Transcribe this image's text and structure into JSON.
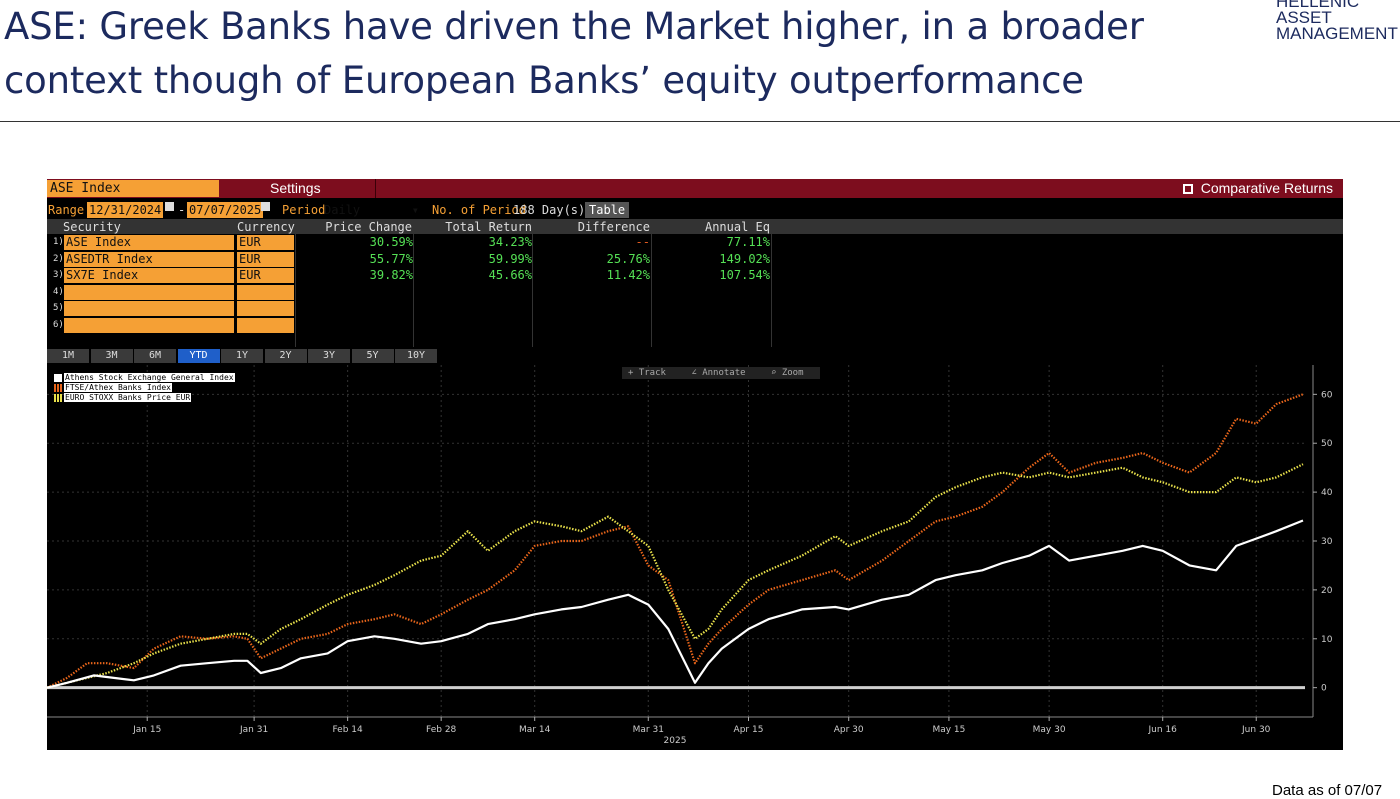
{
  "slide": {
    "title_line1": "ASE: Greek Banks have driven the Market higher, in a broader",
    "title_line2": "context though of European Banks’ equity outperformance",
    "logo_line1": "HELLENIC",
    "logo_line2": "ASSET",
    "logo_line3": "MANAGEMENT",
    "footer": "Data as of 07/07"
  },
  "terminal": {
    "ticker": "ASE Index",
    "settings_label": "Settings",
    "comparative_label": "Comparative Returns",
    "range_label": "Range",
    "range_start": "12/31/2024",
    "range_end": "07/07/2025",
    "range_dash": "-",
    "period_label": "Period",
    "period_value": "Daily",
    "nperiod_label": "No. of Period",
    "nperiod_value": "188 Day(s)",
    "table_button": "Table",
    "columns": [
      "Security",
      "Currency",
      "Price Change",
      "Total Return",
      "Difference",
      "Annual Eq"
    ],
    "rows": [
      {
        "num": "1)",
        "security": "ASE Index",
        "currency": "EUR",
        "price_change": "30.59%",
        "total_return": "34.23%",
        "difference": "--",
        "annual_eq": "77.11%"
      },
      {
        "num": "2)",
        "security": "ASEDTR Index",
        "currency": "EUR",
        "price_change": "55.77%",
        "total_return": "59.99%",
        "difference": "25.76%",
        "annual_eq": "149.02%"
      },
      {
        "num": "3)",
        "security": "SX7E Index",
        "currency": "EUR",
        "price_change": "39.82%",
        "total_return": "45.66%",
        "difference": "11.42%",
        "annual_eq": "107.54%"
      },
      {
        "num": "4)",
        "security": "",
        "currency": "",
        "price_change": "",
        "total_return": "",
        "difference": "",
        "annual_eq": ""
      },
      {
        "num": "5)",
        "security": "",
        "currency": "",
        "price_change": "",
        "total_return": "",
        "difference": "",
        "annual_eq": ""
      },
      {
        "num": "6)",
        "security": "",
        "currency": "",
        "price_change": "",
        "total_return": "",
        "difference": "",
        "annual_eq": ""
      }
    ],
    "period_buttons": [
      "1M",
      "3M",
      "6M",
      "YTD",
      "1Y",
      "2Y",
      "3Y",
      "5Y",
      "10Y"
    ],
    "active_period": "YTD",
    "tools": [
      "Track",
      "Annotate",
      "Zoom"
    ]
  },
  "colors": {
    "title": "#1c2a5e",
    "terminal_bg": "#000000",
    "topbar": "#7d0d1e",
    "orange": "#f5a035",
    "positive": "#55e055",
    "active_button": "#1f5fc9",
    "series_ase": "#ffffff",
    "series_banks": "#e8651a",
    "series_stoxx": "#e8e04a"
  },
  "chart_data": {
    "type": "line",
    "x_tick_labels": [
      "Jan 15",
      "Jan 31",
      "Feb 14",
      "Feb 28",
      "Mar 14",
      "Mar 31",
      "Apr 15",
      "Apr 30",
      "May 15",
      "May 30",
      "Jun 16",
      "Jun 30"
    ],
    "x_year_label": "2025",
    "y_ticks": [
      0,
      10,
      20,
      30,
      40,
      50,
      60
    ],
    "ylim": [
      -6,
      66
    ],
    "x_range": [
      "2024-12-31",
      "2025-07-07"
    ],
    "grid": true,
    "legend_position": "top-left",
    "series": [
      {
        "name": "Athens Stock Exchange General Index",
        "color": "#ffffff",
        "style": "solid",
        "points": [
          [
            "2024-12-31",
            0
          ],
          [
            "2025-01-03",
            1
          ],
          [
            "2025-01-07",
            2.5
          ],
          [
            "2025-01-10",
            2
          ],
          [
            "2025-01-13",
            1.5
          ],
          [
            "2025-01-16",
            2.5
          ],
          [
            "2025-01-20",
            4.5
          ],
          [
            "2025-01-24",
            5
          ],
          [
            "2025-01-28",
            5.5
          ],
          [
            "2025-01-30",
            5.5
          ],
          [
            "2025-02-01",
            3
          ],
          [
            "2025-02-04",
            4
          ],
          [
            "2025-02-07",
            6
          ],
          [
            "2025-02-11",
            7
          ],
          [
            "2025-02-14",
            9.5
          ],
          [
            "2025-02-18",
            10.5
          ],
          [
            "2025-02-21",
            10
          ],
          [
            "2025-02-25",
            9
          ],
          [
            "2025-02-28",
            9.5
          ],
          [
            "2025-03-04",
            11
          ],
          [
            "2025-03-07",
            13
          ],
          [
            "2025-03-11",
            14
          ],
          [
            "2025-03-14",
            15
          ],
          [
            "2025-03-18",
            16
          ],
          [
            "2025-03-21",
            16.5
          ],
          [
            "2025-03-25",
            18
          ],
          [
            "2025-03-28",
            19
          ],
          [
            "2025-03-31",
            17
          ],
          [
            "2025-04-03",
            12
          ],
          [
            "2025-04-07",
            1
          ],
          [
            "2025-04-09",
            5
          ],
          [
            "2025-04-11",
            8
          ],
          [
            "2025-04-15",
            12
          ],
          [
            "2025-04-18",
            14
          ],
          [
            "2025-04-23",
            16
          ],
          [
            "2025-04-28",
            16.5
          ],
          [
            "2025-04-30",
            16
          ],
          [
            "2025-05-05",
            18
          ],
          [
            "2025-05-09",
            19
          ],
          [
            "2025-05-13",
            22
          ],
          [
            "2025-05-16",
            23
          ],
          [
            "2025-05-20",
            24
          ],
          [
            "2025-05-23",
            25.5
          ],
          [
            "2025-05-27",
            27
          ],
          [
            "2025-05-30",
            29
          ],
          [
            "2025-06-02",
            26
          ],
          [
            "2025-06-06",
            27
          ],
          [
            "2025-06-10",
            28
          ],
          [
            "2025-06-13",
            29
          ],
          [
            "2025-06-16",
            28
          ],
          [
            "2025-06-20",
            25
          ],
          [
            "2025-06-24",
            24
          ],
          [
            "2025-06-27",
            29
          ],
          [
            "2025-06-30",
            30.5
          ],
          [
            "2025-07-03",
            32
          ],
          [
            "2025-07-07",
            34.2
          ]
        ]
      },
      {
        "name": "FTSE/Athex Banks Index",
        "color": "#e8651a",
        "style": "dotted",
        "points": [
          [
            "2024-12-31",
            0
          ],
          [
            "2025-01-03",
            2
          ],
          [
            "2025-01-06",
            5
          ],
          [
            "2025-01-09",
            5
          ],
          [
            "2025-01-13",
            4
          ],
          [
            "2025-01-16",
            8
          ],
          [
            "2025-01-20",
            10.5
          ],
          [
            "2025-01-24",
            10
          ],
          [
            "2025-01-28",
            10.5
          ],
          [
            "2025-01-30",
            10
          ],
          [
            "2025-02-01",
            6
          ],
          [
            "2025-02-04",
            8
          ],
          [
            "2025-02-07",
            10
          ],
          [
            "2025-02-11",
            11
          ],
          [
            "2025-02-14",
            13
          ],
          [
            "2025-02-18",
            14
          ],
          [
            "2025-02-21",
            15
          ],
          [
            "2025-02-25",
            13
          ],
          [
            "2025-02-28",
            15
          ],
          [
            "2025-03-04",
            18
          ],
          [
            "2025-03-07",
            20
          ],
          [
            "2025-03-11",
            24
          ],
          [
            "2025-03-14",
            29
          ],
          [
            "2025-03-18",
            30
          ],
          [
            "2025-03-21",
            30
          ],
          [
            "2025-03-25",
            32
          ],
          [
            "2025-03-28",
            33
          ],
          [
            "2025-03-31",
            25
          ],
          [
            "2025-04-03",
            22
          ],
          [
            "2025-04-07",
            5
          ],
          [
            "2025-04-09",
            9
          ],
          [
            "2025-04-11",
            12
          ],
          [
            "2025-04-15",
            17
          ],
          [
            "2025-04-18",
            20
          ],
          [
            "2025-04-23",
            22
          ],
          [
            "2025-04-28",
            24
          ],
          [
            "2025-04-30",
            22
          ],
          [
            "2025-05-05",
            26
          ],
          [
            "2025-05-09",
            30
          ],
          [
            "2025-05-13",
            34
          ],
          [
            "2025-05-16",
            35
          ],
          [
            "2025-05-20",
            37
          ],
          [
            "2025-05-23",
            40
          ],
          [
            "2025-05-27",
            45
          ],
          [
            "2025-05-30",
            48
          ],
          [
            "2025-06-02",
            44
          ],
          [
            "2025-06-06",
            46
          ],
          [
            "2025-06-10",
            47
          ],
          [
            "2025-06-13",
            48
          ],
          [
            "2025-06-16",
            46
          ],
          [
            "2025-06-20",
            44
          ],
          [
            "2025-06-24",
            48
          ],
          [
            "2025-06-27",
            55
          ],
          [
            "2025-06-30",
            54
          ],
          [
            "2025-07-03",
            58
          ],
          [
            "2025-07-07",
            60
          ]
        ]
      },
      {
        "name": "EURO STOXX Banks Price EUR",
        "color": "#e8e04a",
        "style": "dotted",
        "points": [
          [
            "2024-12-31",
            0
          ],
          [
            "2025-01-03",
            1
          ],
          [
            "2025-01-06",
            2
          ],
          [
            "2025-01-09",
            3
          ],
          [
            "2025-01-13",
            5
          ],
          [
            "2025-01-16",
            7
          ],
          [
            "2025-01-20",
            9
          ],
          [
            "2025-01-24",
            10
          ],
          [
            "2025-01-28",
            11
          ],
          [
            "2025-01-30",
            11
          ],
          [
            "2025-02-01",
            9
          ],
          [
            "2025-02-04",
            12
          ],
          [
            "2025-02-07",
            14
          ],
          [
            "2025-02-11",
            17
          ],
          [
            "2025-02-14",
            19
          ],
          [
            "2025-02-18",
            21
          ],
          [
            "2025-02-21",
            23
          ],
          [
            "2025-02-25",
            26
          ],
          [
            "2025-02-28",
            27
          ],
          [
            "2025-03-04",
            32
          ],
          [
            "2025-03-07",
            28
          ],
          [
            "2025-03-11",
            32
          ],
          [
            "2025-03-14",
            34
          ],
          [
            "2025-03-18",
            33
          ],
          [
            "2025-03-21",
            32
          ],
          [
            "2025-03-25",
            35
          ],
          [
            "2025-03-28",
            32
          ],
          [
            "2025-03-31",
            29
          ],
          [
            "2025-04-03",
            20
          ],
          [
            "2025-04-07",
            10
          ],
          [
            "2025-04-09",
            12
          ],
          [
            "2025-04-11",
            16
          ],
          [
            "2025-04-15",
            22
          ],
          [
            "2025-04-18",
            24
          ],
          [
            "2025-04-23",
            27
          ],
          [
            "2025-04-28",
            31
          ],
          [
            "2025-04-30",
            29
          ],
          [
            "2025-05-05",
            32
          ],
          [
            "2025-05-09",
            34
          ],
          [
            "2025-05-13",
            39
          ],
          [
            "2025-05-16",
            41
          ],
          [
            "2025-05-20",
            43
          ],
          [
            "2025-05-23",
            44
          ],
          [
            "2025-05-27",
            43
          ],
          [
            "2025-05-30",
            44
          ],
          [
            "2025-06-02",
            43
          ],
          [
            "2025-06-06",
            44
          ],
          [
            "2025-06-10",
            45
          ],
          [
            "2025-06-13",
            43
          ],
          [
            "2025-06-16",
            42
          ],
          [
            "2025-06-20",
            40
          ],
          [
            "2025-06-24",
            40
          ],
          [
            "2025-06-27",
            43
          ],
          [
            "2025-06-30",
            42
          ],
          [
            "2025-07-03",
            43
          ],
          [
            "2025-07-07",
            45.7
          ]
        ]
      }
    ]
  }
}
